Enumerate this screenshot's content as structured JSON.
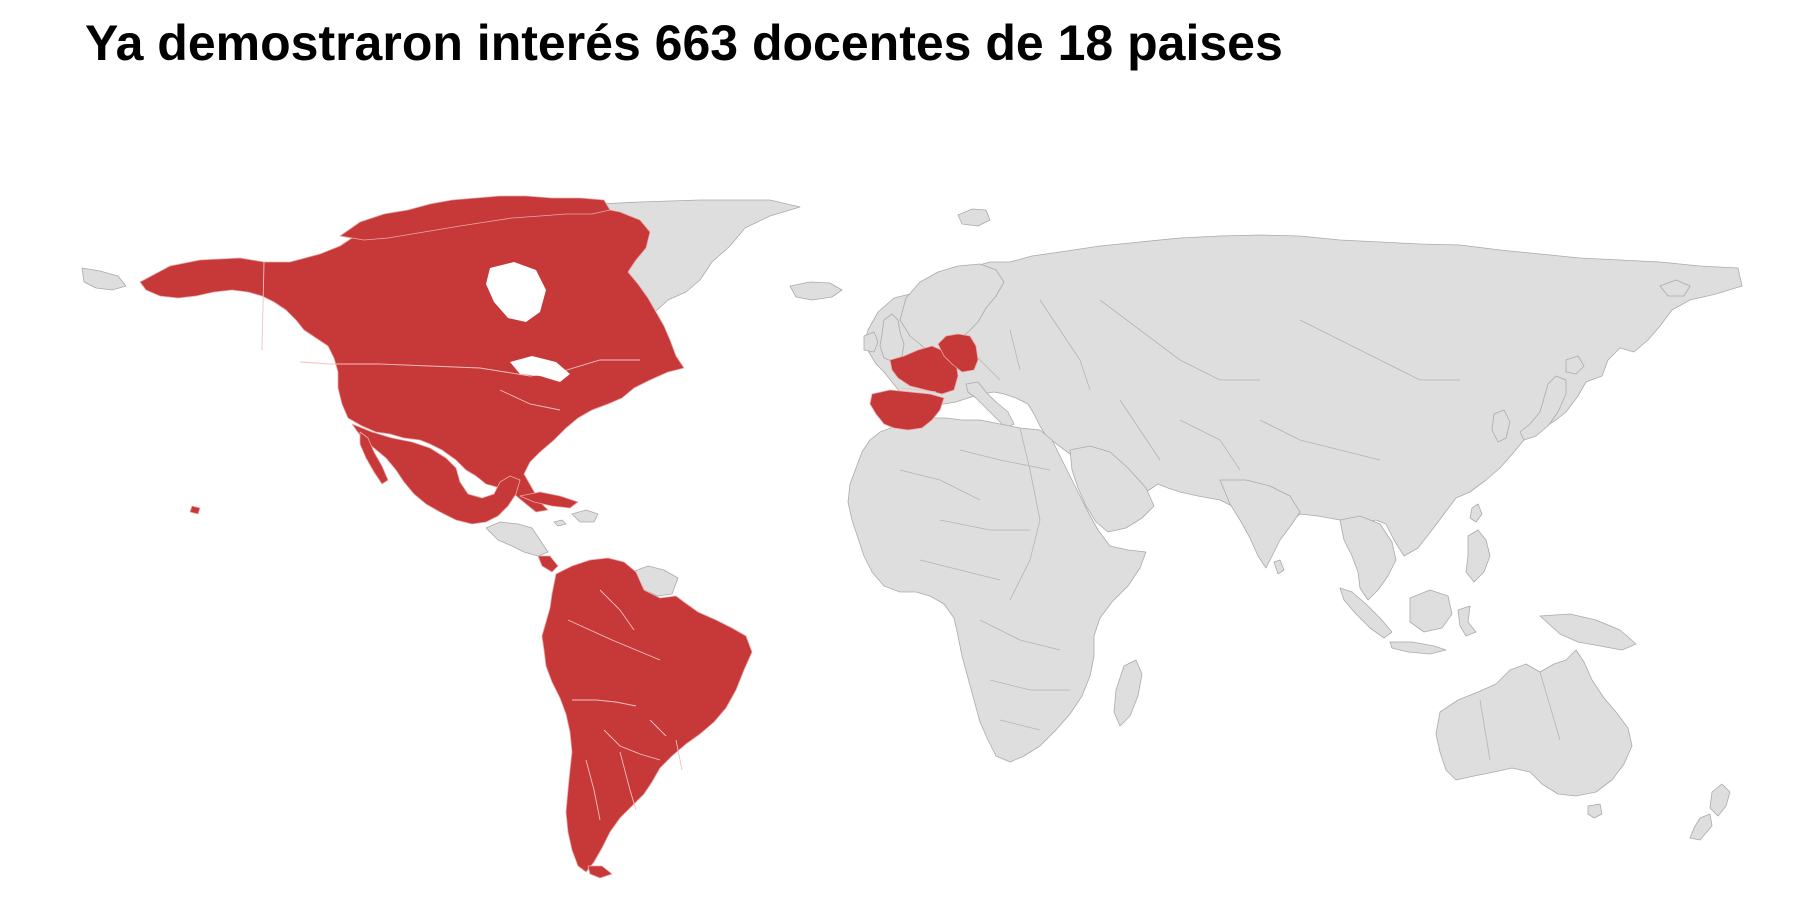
{
  "title": "Ya demostraron interés 663 docentes de 18 paises",
  "map": {
    "projection": "equirectangular world map",
    "colors": {
      "highlighted": "#c73838",
      "other": "#dedede",
      "background": "#ffffff"
    },
    "highlighted_regions": [
      "Canada",
      "United States",
      "Mexico",
      "Cuba",
      "Costa Rica",
      "Colombia",
      "Venezuela",
      "Ecuador",
      "Peru",
      "Brazil",
      "Bolivia",
      "Paraguay",
      "Uruguay",
      "Argentina",
      "Chile",
      "Spain",
      "France",
      "Germany"
    ]
  }
}
